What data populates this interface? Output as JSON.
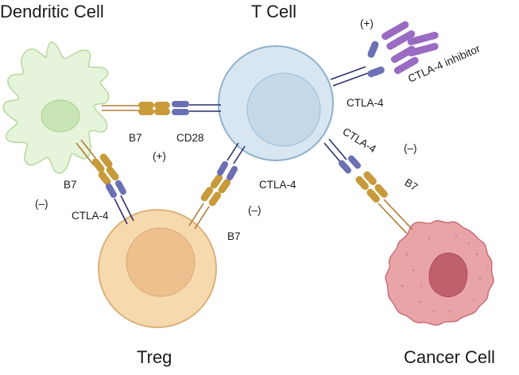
{
  "cells": {
    "dendritic": "Dendritic Cell",
    "tcell": "T Cell",
    "treg": "Treg",
    "cancer": "Cancer Cell"
  },
  "labels": {
    "b7_dc_top": "B7",
    "cd28": "CD28",
    "plus_center": "(+)",
    "b7_dc_left": "B7",
    "minus_left": "(–)",
    "ctla4_treg": "CTLA-4",
    "ctla4_tcell_lower": "CTLA-4",
    "minus_mid": "(–)",
    "b7_treg": "B7",
    "ctla4_tcell_upper": "CTLA-4",
    "ctla4_tcell_right": "CTLA-4",
    "minus_right": "(–)",
    "b7_cancer": "B7",
    "plus_top": "(+)",
    "ctla4_inhibitor": "CTLA-4 inhibitor"
  },
  "colors": {
    "dc_fill": "#e6f4dc",
    "dc_stroke": "#b5d99b",
    "tcell_fill": "#d7e6f1",
    "tcell_stroke": "#8fb0cc",
    "treg_fill": "#f7d9ae",
    "treg_stroke": "#dcb077",
    "cancer_fill": "#e9a4a8",
    "cancer_stroke": "#c86e76",
    "b7_gold": "#c89a3a",
    "ctla4_blue": "#6b6fb4",
    "stalk_navy": "#2d3170",
    "inhibitor_purple": "#9a6bc2"
  }
}
